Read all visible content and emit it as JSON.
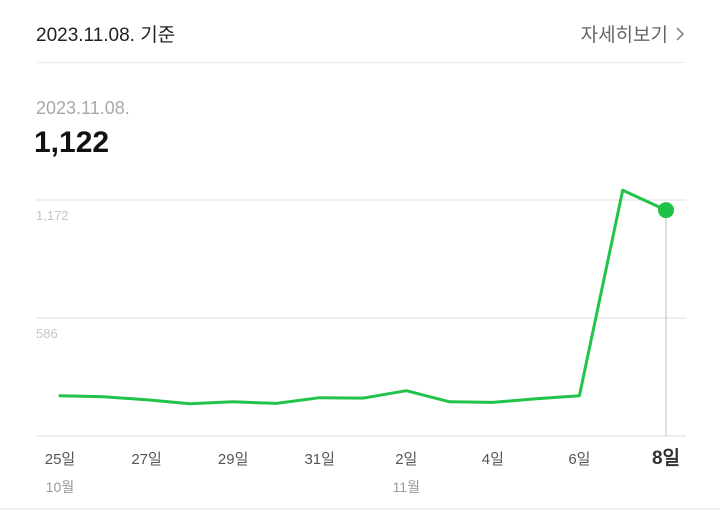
{
  "header": {
    "date_label": "2023.11.08. 기준",
    "detail_label": "자세히보기"
  },
  "selection": {
    "date": "2023.11.08.",
    "value": "1,122"
  },
  "colors": {
    "line": "#22c34a",
    "marker": "#1fc245",
    "grid": "#e3e3e3",
    "axis_text": "#555555",
    "y_tick_text": "#c4c4c4",
    "month_text": "#9a9a9a",
    "highlight_text": "#333333"
  },
  "icons": {
    "detail": "chevron-right-icon"
  },
  "chart_data": {
    "type": "line",
    "title": "",
    "xlabel": "",
    "ylabel": "",
    "x": [
      "10-25",
      "10-26",
      "10-27",
      "10-28",
      "10-29",
      "10-30",
      "10-31",
      "11-01",
      "11-02",
      "11-03",
      "11-04",
      "11-05",
      "11-06",
      "11-07",
      "11-08"
    ],
    "values": [
      200,
      195,
      180,
      160,
      170,
      162,
      190,
      188,
      225,
      170,
      167,
      185,
      200,
      1220,
      1122
    ],
    "ylim": [
      0,
      1172
    ],
    "y_ticks": [
      586,
      1172
    ],
    "y_tick_labels": [
      "586",
      "1,172"
    ],
    "x_tick_labels": [
      "25일",
      "27일",
      "29일",
      "31일",
      "2일",
      "4일",
      "6일",
      "8일"
    ],
    "x_tick_dates": [
      "10-25",
      "10-27",
      "10-29",
      "10-31",
      "11-02",
      "11-04",
      "11-06",
      "11-08"
    ],
    "month_labels": [
      {
        "date": "10-25",
        "label": "10월"
      },
      {
        "date": "11-02",
        "label": "11월"
      }
    ],
    "highlight_date": "11-08",
    "grid": true
  }
}
